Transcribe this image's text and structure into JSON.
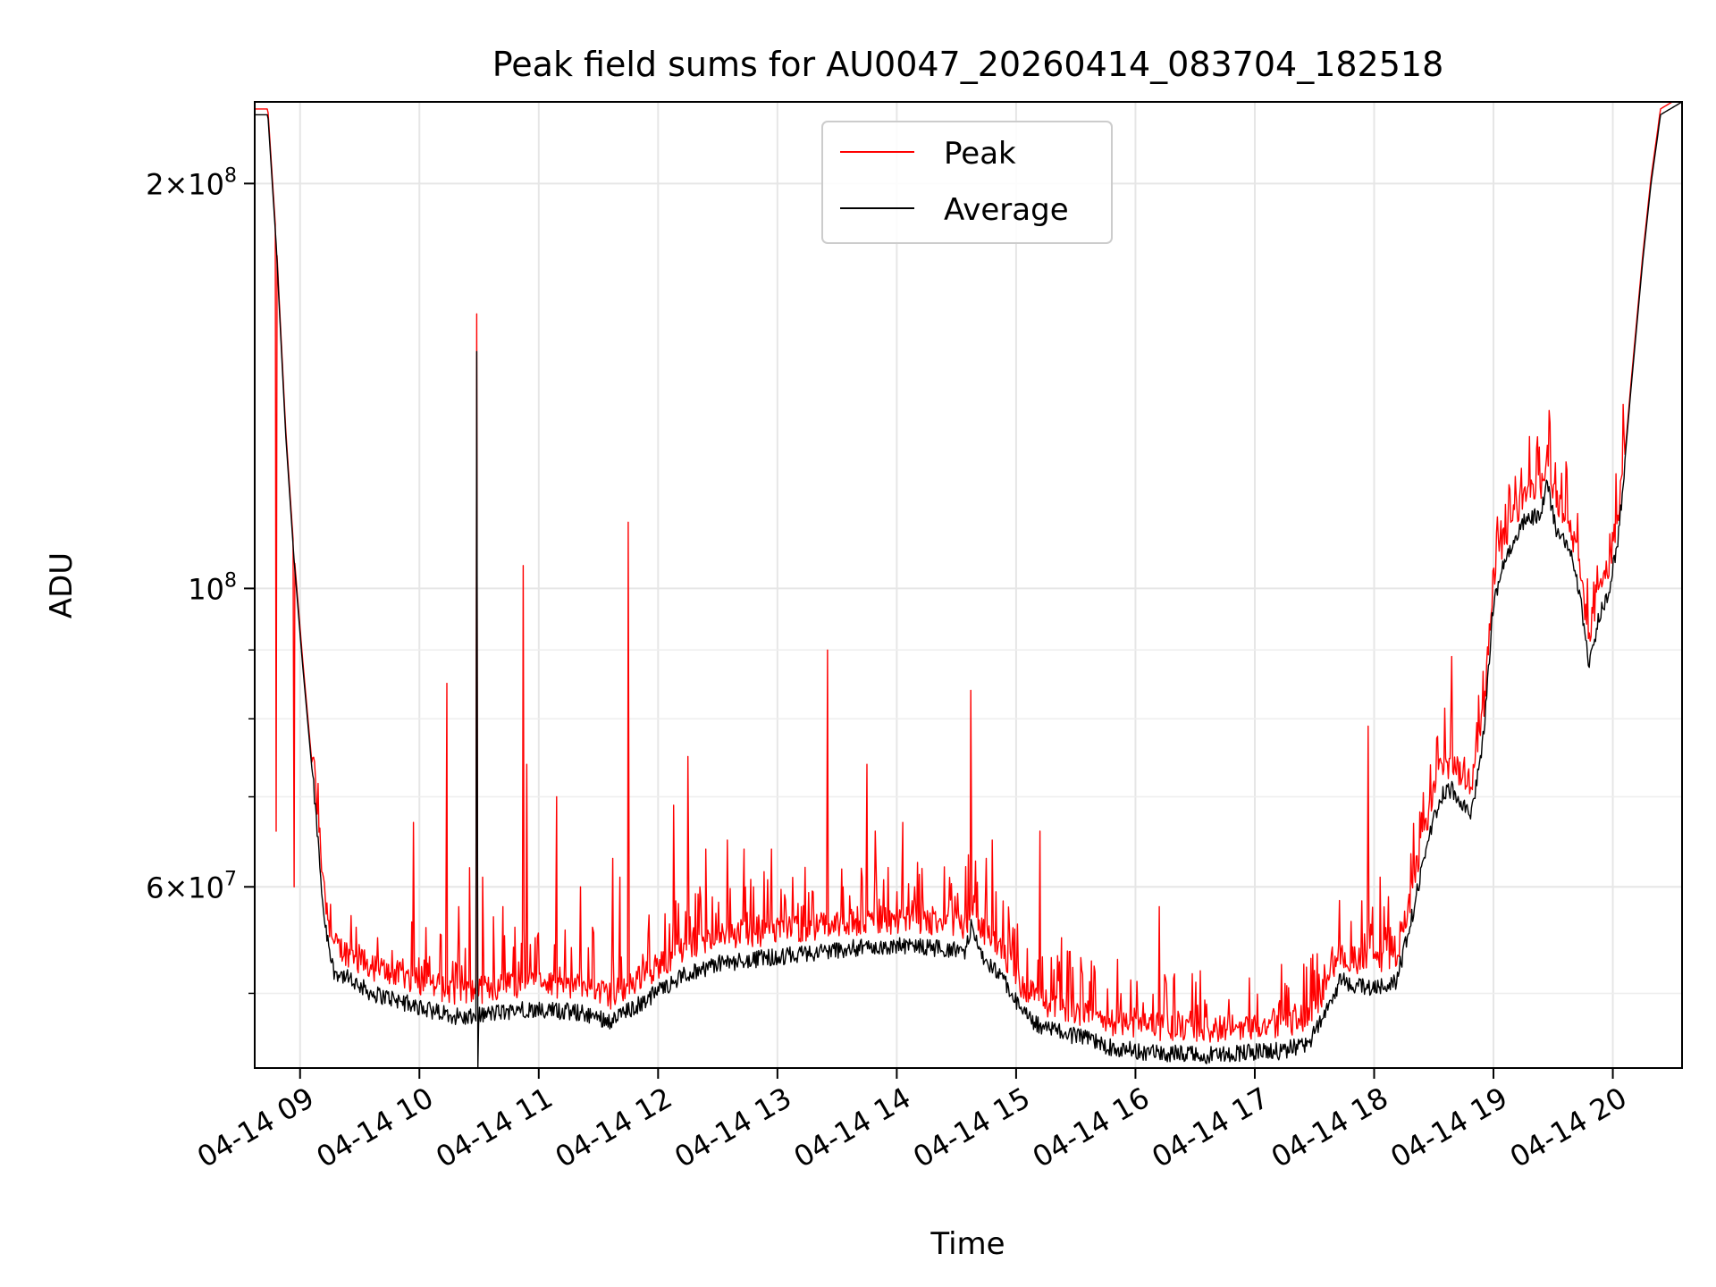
{
  "chart_data": {
    "type": "line",
    "title": "Peak field sums for AU0047_20260414_083704_182518",
    "xlabel": "Time",
    "ylabel": "ADU",
    "yscale": "log",
    "ylim": [
      44000000,
      230000000
    ],
    "xlim_hours": [
      8.62,
      20.58
    ],
    "grid": true,
    "legend_position": "upper center",
    "x_tick_labels": [
      {
        "hour": 9,
        "label": "04-14 09"
      },
      {
        "hour": 10,
        "label": "04-14 10"
      },
      {
        "hour": 11,
        "label": "04-14 11"
      },
      {
        "hour": 12,
        "label": "04-14 12"
      },
      {
        "hour": 13,
        "label": "04-14 13"
      },
      {
        "hour": 14,
        "label": "04-14 14"
      },
      {
        "hour": 15,
        "label": "04-14 15"
      },
      {
        "hour": 16,
        "label": "04-14 16"
      },
      {
        "hour": 17,
        "label": "04-14 17"
      },
      {
        "hour": 18,
        "label": "04-14 18"
      },
      {
        "hour": 19,
        "label": "04-14 19"
      },
      {
        "hour": 20,
        "label": "04-14 20"
      }
    ],
    "y_tick_labels": [
      {
        "value": 200000000,
        "mantissa": "2×10",
        "exp": "8"
      },
      {
        "value": 100000000,
        "mantissa": "10",
        "exp": "8"
      },
      {
        "value": 60000000,
        "mantissa": "6×10",
        "exp": "7"
      }
    ],
    "y_minor_ticks": [
      50000000,
      70000000,
      80000000,
      90000000
    ],
    "series": [
      {
        "name": "Peak",
        "color": "#ff0000",
        "spikes": [
          [
            8.8,
            66000000
          ],
          [
            8.95,
            60000000
          ],
          [
            9.47,
            56000000
          ],
          [
            9.65,
            55000000
          ],
          [
            9.95,
            67000000
          ],
          [
            10.23,
            85000000
          ],
          [
            10.33,
            58000000
          ],
          [
            10.42,
            62000000
          ],
          [
            10.48,
            160000000
          ],
          [
            10.53,
            61000000
          ],
          [
            10.62,
            57000000
          ],
          [
            10.7,
            58000000
          ],
          [
            10.8,
            56000000
          ],
          [
            10.87,
            104000000
          ],
          [
            10.9,
            74000000
          ],
          [
            10.97,
            55000000
          ],
          [
            11.15,
            70000000
          ],
          [
            11.35,
            60000000
          ],
          [
            11.45,
            56000000
          ],
          [
            11.62,
            63000000
          ],
          [
            11.68,
            61000000
          ],
          [
            11.75,
            112000000
          ],
          [
            12.13,
            69000000
          ],
          [
            12.25,
            75000000
          ],
          [
            12.35,
            60000000
          ],
          [
            12.4,
            64000000
          ],
          [
            12.58,
            65000000
          ],
          [
            12.72,
            64000000
          ],
          [
            12.8,
            60000000
          ],
          [
            12.95,
            64000000
          ],
          [
            13.1,
            57000000
          ],
          [
            13.2,
            58000000
          ],
          [
            13.42,
            90000000
          ],
          [
            13.55,
            60000000
          ],
          [
            13.67,
            58000000
          ],
          [
            13.75,
            74000000
          ],
          [
            13.82,
            66000000
          ],
          [
            14.05,
            67000000
          ],
          [
            14.15,
            60000000
          ],
          [
            14.3,
            58000000
          ],
          [
            14.62,
            84000000
          ],
          [
            14.75,
            63000000
          ],
          [
            14.8,
            65000000
          ],
          [
            15.2,
            66000000
          ],
          [
            15.38,
            55000000
          ],
          [
            15.55,
            52000000
          ],
          [
            15.85,
            53000000
          ],
          [
            16.2,
            58000000
          ],
          [
            16.52,
            49000000
          ],
          [
            17.5,
            52000000
          ],
          [
            17.95,
            79000000
          ],
          [
            18.05,
            61000000
          ],
          [
            18.12,
            59000000
          ],
          [
            18.65,
            89000000
          ]
        ]
      },
      {
        "name": "Average",
        "color": "#000000",
        "baseline": [
          [
            8.62,
            225000000
          ],
          [
            8.73,
            225000000
          ],
          [
            8.8,
            180000000
          ],
          [
            8.88,
            130000000
          ],
          [
            8.95,
            105000000
          ],
          [
            9.02,
            88000000
          ],
          [
            9.12,
            70000000
          ],
          [
            9.2,
            57000000
          ],
          [
            9.28,
            52000000
          ],
          [
            9.45,
            51000000
          ],
          [
            9.6,
            50000000
          ],
          [
            9.8,
            49500000
          ],
          [
            10.0,
            48800000
          ],
          [
            10.2,
            48300000
          ],
          [
            10.4,
            47900000
          ],
          [
            10.6,
            48300000
          ],
          [
            10.9,
            48700000
          ],
          [
            11.2,
            48500000
          ],
          [
            11.4,
            48300000
          ],
          [
            11.6,
            47700000
          ],
          [
            11.8,
            48800000
          ],
          [
            12.0,
            50200000
          ],
          [
            12.2,
            51500000
          ],
          [
            12.5,
            52600000
          ],
          [
            12.8,
            53000000
          ],
          [
            13.2,
            53500000
          ],
          [
            13.6,
            54000000
          ],
          [
            14.0,
            54200000
          ],
          [
            14.4,
            54000000
          ],
          [
            14.58,
            53700000
          ],
          [
            14.62,
            56000000
          ],
          [
            14.7,
            53400000
          ],
          [
            14.9,
            51000000
          ],
          [
            15.05,
            48500000
          ],
          [
            15.2,
            47200000
          ],
          [
            15.5,
            46500000
          ],
          [
            15.8,
            45600000
          ],
          [
            16.0,
            45300000
          ],
          [
            16.3,
            45100000
          ],
          [
            16.6,
            45000000
          ],
          [
            16.9,
            45200000
          ],
          [
            17.2,
            45300000
          ],
          [
            17.45,
            45800000
          ],
          [
            17.6,
            48500000
          ],
          [
            17.72,
            51200000
          ],
          [
            17.85,
            50600000
          ],
          [
            18.0,
            50600000
          ],
          [
            18.18,
            51000000
          ],
          [
            18.28,
            55000000
          ],
          [
            18.4,
            62000000
          ],
          [
            18.55,
            70000000
          ],
          [
            18.65,
            71000000
          ],
          [
            18.82,
            68000000
          ],
          [
            18.92,
            78000000
          ],
          [
            19.0,
            98000000
          ],
          [
            19.1,
            105000000
          ],
          [
            19.25,
            112000000
          ],
          [
            19.4,
            114000000
          ],
          [
            19.45,
            120000000
          ],
          [
            19.52,
            111000000
          ],
          [
            19.62,
            108000000
          ],
          [
            19.72,
            100000000
          ],
          [
            19.8,
            87000000
          ],
          [
            19.88,
            95000000
          ],
          [
            19.97,
            100000000
          ],
          [
            20.05,
            110000000
          ],
          [
            20.15,
            140000000
          ],
          [
            20.25,
            175000000
          ],
          [
            20.32,
            200000000
          ],
          [
            20.4,
            225000000
          ],
          [
            20.58,
            230000000
          ]
        ],
        "spikes": [
          [
            10.48,
            150000000
          ]
        ],
        "dips": [
          [
            10.49,
            44000000
          ]
        ]
      }
    ]
  }
}
